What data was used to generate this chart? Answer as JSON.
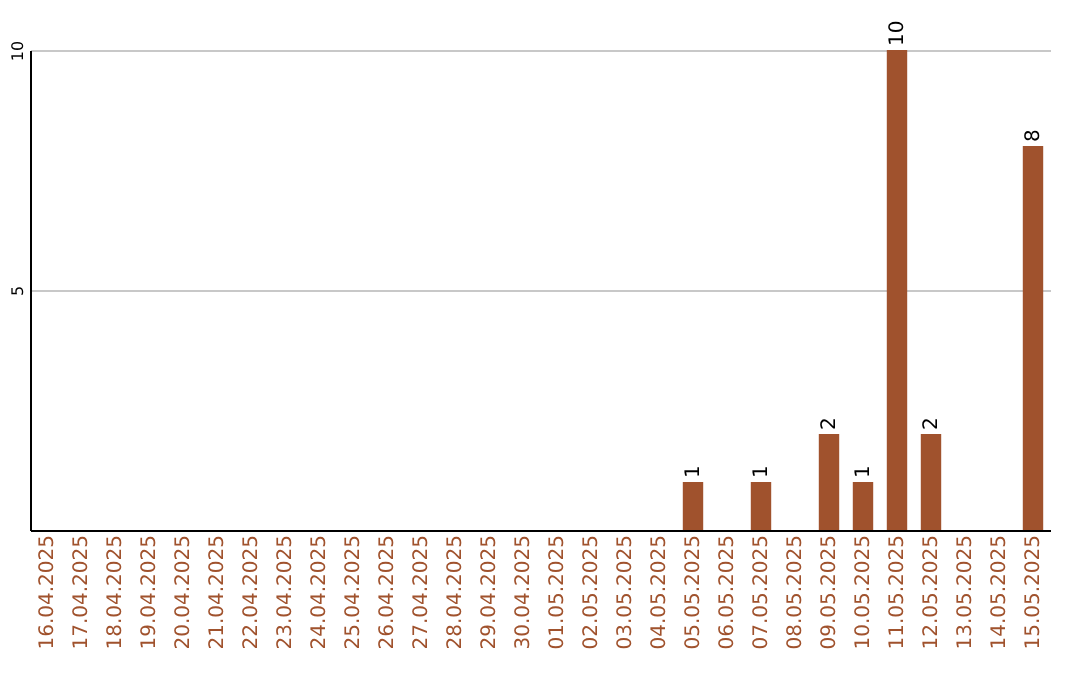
{
  "chart_data": {
    "type": "bar",
    "categories": [
      "16.04.2025",
      "17.04.2025",
      "18.04.2025",
      "19.04.2025",
      "20.04.2025",
      "21.04.2025",
      "22.04.2025",
      "23.04.2025",
      "24.04.2025",
      "25.04.2025",
      "26.04.2025",
      "27.04.2025",
      "28.04.2025",
      "29.04.2025",
      "30.04.2025",
      "01.05.2025",
      "02.05.2025",
      "03.05.2025",
      "04.05.2025",
      "05.05.2025",
      "06.05.2025",
      "07.05.2025",
      "08.05.2025",
      "09.05.2025",
      "10.05.2025",
      "11.05.2025",
      "12.05.2025",
      "13.05.2025",
      "14.05.2025",
      "15.05.2025"
    ],
    "values": [
      0,
      0,
      0,
      0,
      0,
      0,
      0,
      0,
      0,
      0,
      0,
      0,
      0,
      0,
      0,
      0,
      0,
      0,
      0,
      1,
      0,
      1,
      0,
      2,
      1,
      10,
      2,
      0,
      0,
      8
    ],
    "value_labels": [
      null,
      null,
      null,
      null,
      null,
      null,
      null,
      null,
      null,
      null,
      null,
      null,
      null,
      null,
      null,
      null,
      null,
      null,
      null,
      "1",
      null,
      "1",
      null,
      "2",
      "1",
      "10",
      "2",
      null,
      null,
      "8"
    ],
    "color": "#a0522d",
    "ylim": [
      0,
      10
    ],
    "yticks": [
      5,
      10
    ],
    "grid": "y"
  }
}
